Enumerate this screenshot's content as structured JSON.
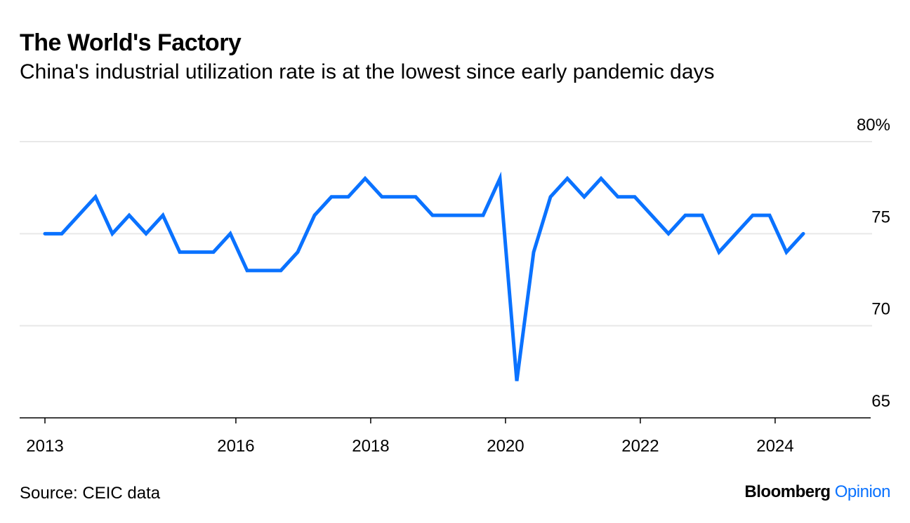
{
  "header": {
    "title": "The World's Factory",
    "subtitle": "China's industrial utilization rate is at the lowest since early pandemic days"
  },
  "footer": {
    "source": "Source: CEIC data",
    "logo_brand": "Bloomberg",
    "logo_section": "Opinion"
  },
  "colors": {
    "line": "#0a72ff",
    "grid": "#e8e8e8",
    "axis": "#000000"
  },
  "chart_data": {
    "type": "line",
    "title": "The World's Factory",
    "subtitle": "China's industrial utilization rate is at the lowest since early pandemic days",
    "xlabel": "",
    "ylabel": "",
    "x_unit": "quarter index (0 = 2013 Q1, quarterly through 2024 Q2)",
    "series": [
      {
        "name": "Industrial capacity utilization rate (%)",
        "values": [
          75,
          75,
          76,
          77,
          75,
          76,
          75,
          76,
          74,
          74,
          74,
          75,
          73,
          73,
          73,
          74,
          76,
          77,
          77,
          78,
          77,
          77,
          77,
          76,
          76,
          76,
          76,
          78,
          67,
          74,
          77,
          78,
          77,
          78,
          77,
          77,
          76,
          75,
          76,
          76,
          74,
          75,
          76,
          76,
          74,
          75
        ]
      }
    ],
    "ylim": [
      65,
      80
    ],
    "y_ticks": [
      {
        "value": 80,
        "label": "80%"
      },
      {
        "value": 75,
        "label": "75"
      },
      {
        "value": 70,
        "label": "70"
      },
      {
        "value": 65,
        "label": "65"
      }
    ],
    "x_ticks": [
      {
        "value": 0,
        "label": "2013"
      },
      {
        "value": 11.33,
        "label": "2016"
      },
      {
        "value": 19.33,
        "label": "2018"
      },
      {
        "value": 27.33,
        "label": "2020"
      },
      {
        "value": 35.33,
        "label": "2022"
      },
      {
        "value": 43.33,
        "label": "2024"
      }
    ],
    "grid": true,
    "y_axis_position": "right",
    "legend": "none"
  }
}
